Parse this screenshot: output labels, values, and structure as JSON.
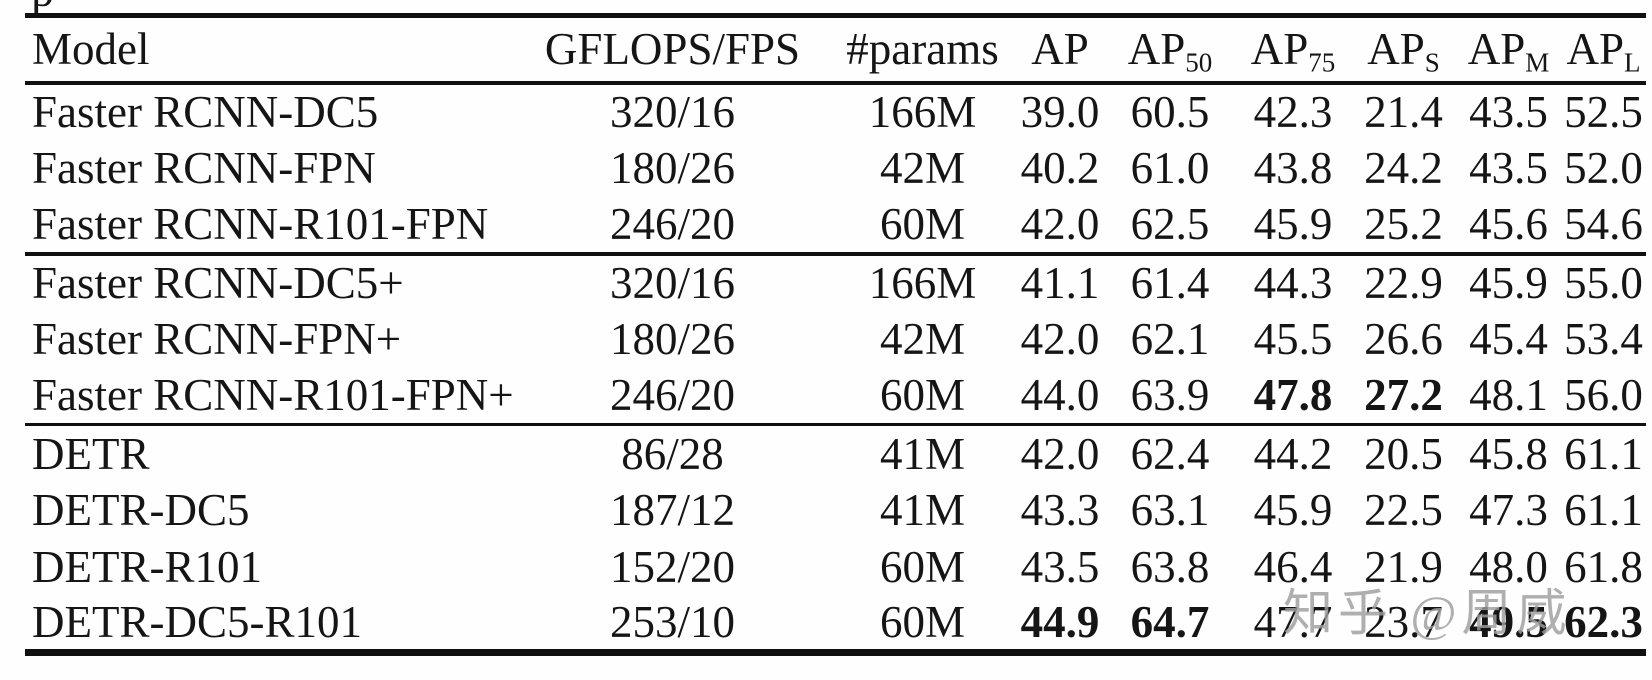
{
  "artifact": {
    "partial_glyph": "p"
  },
  "watermark": {
    "text": "知乎 @周威",
    "color": "#9e9e9e"
  },
  "table": {
    "columns": [
      {
        "key": "model",
        "label": "Model",
        "sub": ""
      },
      {
        "key": "gflops",
        "label": "GFLOPS/FPS",
        "sub": ""
      },
      {
        "key": "params",
        "label": "#params",
        "sub": ""
      },
      {
        "key": "ap",
        "label": "AP",
        "sub": ""
      },
      {
        "key": "ap50",
        "label": "AP",
        "sub": "50"
      },
      {
        "key": "ap75",
        "label": "AP",
        "sub": "75"
      },
      {
        "key": "aps",
        "label": "AP",
        "sub": "S"
      },
      {
        "key": "apm",
        "label": "AP",
        "sub": "M"
      },
      {
        "key": "apl",
        "label": "AP",
        "sub": "L"
      }
    ],
    "groups": [
      {
        "rows": [
          {
            "cells": [
              "Faster RCNN-DC5",
              "320/16",
              "166M",
              "39.0",
              "60.5",
              "42.3",
              "21.4",
              "43.5",
              "52.5"
            ],
            "bold": []
          },
          {
            "cells": [
              "Faster RCNN-FPN",
              "180/26",
              "42M",
              "40.2",
              "61.0",
              "43.8",
              "24.2",
              "43.5",
              "52.0"
            ],
            "bold": []
          },
          {
            "cells": [
              "Faster RCNN-R101-FPN",
              "246/20",
              "60M",
              "42.0",
              "62.5",
              "45.9",
              "25.2",
              "45.6",
              "54.6"
            ],
            "bold": []
          }
        ]
      },
      {
        "rows": [
          {
            "cells": [
              "Faster RCNN-DC5+",
              "320/16",
              "166M",
              "41.1",
              "61.4",
              "44.3",
              "22.9",
              "45.9",
              "55.0"
            ],
            "bold": []
          },
          {
            "cells": [
              "Faster RCNN-FPN+",
              "180/26",
              "42M",
              "42.0",
              "62.1",
              "45.5",
              "26.6",
              "45.4",
              "53.4"
            ],
            "bold": []
          },
          {
            "cells": [
              "Faster RCNN-R101-FPN+",
              "246/20",
              "60M",
              "44.0",
              "63.9",
              "47.8",
              "27.2",
              "48.1",
              "56.0"
            ],
            "bold": [
              5,
              6
            ]
          }
        ]
      },
      {
        "rows": [
          {
            "cells": [
              "DETR",
              "86/28",
              "41M",
              "42.0",
              "62.4",
              "44.2",
              "20.5",
              "45.8",
              "61.1"
            ],
            "bold": []
          },
          {
            "cells": [
              "DETR-DC5",
              "187/12",
              "41M",
              "43.3",
              "63.1",
              "45.9",
              "22.5",
              "47.3",
              "61.1"
            ],
            "bold": []
          },
          {
            "cells": [
              "DETR-R101",
              "152/20",
              "60M",
              "43.5",
              "63.8",
              "46.4",
              "21.9",
              "48.0",
              "61.8"
            ],
            "bold": []
          },
          {
            "cells": [
              "DETR-DC5-R101",
              "253/10",
              "60M",
              "44.9",
              "64.7",
              "47.7",
              "23.7",
              "49.5",
              "62.3"
            ],
            "bold": [
              3,
              4,
              7,
              8
            ]
          }
        ]
      }
    ]
  }
}
